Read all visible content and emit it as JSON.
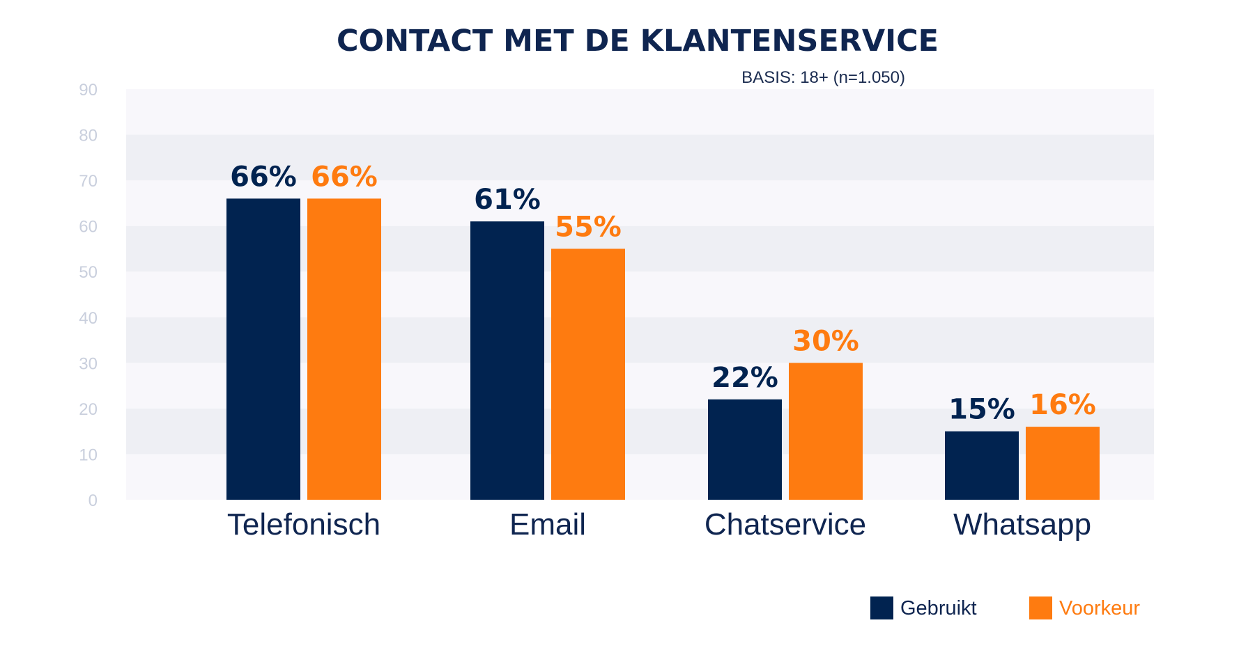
{
  "colors": {
    "gebruikt": "#012350",
    "voorkeur": "#fe7b10",
    "band_light": "#f8f7fb",
    "band_dark": "#eeeff4",
    "title": "#0f2550",
    "axis_tick": "#c9cfdd"
  },
  "chart_data": {
    "type": "bar",
    "title": "CONTACT MET DE KLANTENSERVICE",
    "subtitle": "BASIS: 18+ (n=1.050)",
    "categories": [
      "Telefonisch",
      "Email",
      "Chatservice",
      "Whatsapp"
    ],
    "series": [
      {
        "name": "Gebruikt",
        "values": [
          66,
          61,
          22,
          15
        ],
        "labels": [
          "66%",
          "61%",
          "22%",
          "15%"
        ]
      },
      {
        "name": "Voorkeur",
        "values": [
          66,
          55,
          30,
          16
        ],
        "labels": [
          "66%",
          "55%",
          "30%",
          "16%"
        ]
      }
    ],
    "ylim": [
      0,
      90
    ],
    "yticks": [
      "0",
      "10",
      "20",
      "30",
      "40",
      "50",
      "60",
      "70",
      "80",
      "90"
    ],
    "grid": "alternating horizontal bands",
    "legend": "bottom-right"
  }
}
